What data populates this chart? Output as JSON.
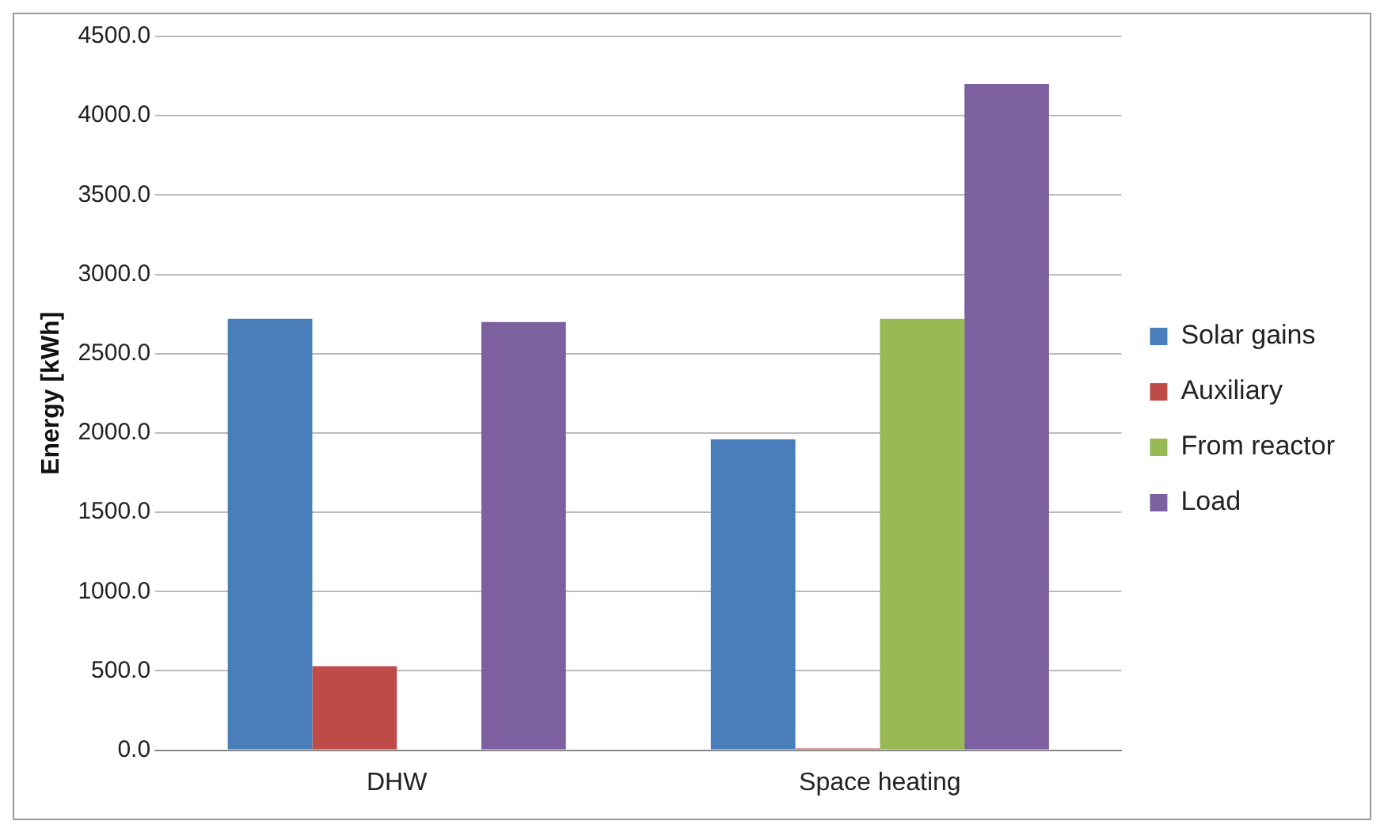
{
  "chart_data": {
    "type": "bar",
    "ylabel": "Energy [kWh]",
    "categories": [
      "DHW",
      "Space heating"
    ],
    "series": [
      {
        "name": "Solar gains",
        "color": "#4a7ebb",
        "values": [
          2720,
          1960
        ]
      },
      {
        "name": "Auxiliary",
        "color": "#be4b48",
        "values": [
          530,
          10
        ]
      },
      {
        "name": "From reactor",
        "color": "#98b954",
        "values": [
          0,
          2720
        ]
      },
      {
        "name": "Load",
        "color": "#7d60a0",
        "values": [
          2700,
          4200
        ]
      }
    ],
    "ylim": [
      0,
      4500
    ],
    "yticks": [
      {
        "value": 0,
        "label": "0.0"
      },
      {
        "value": 500,
        "label": "500.0"
      },
      {
        "value": 1000,
        "label": "1000.0"
      },
      {
        "value": 1500,
        "label": "1500.0"
      },
      {
        "value": 2000,
        "label": "2000.0"
      },
      {
        "value": 2500,
        "label": "2500.0"
      },
      {
        "value": 3000,
        "label": "3000.0"
      },
      {
        "value": 3500,
        "label": "3500.0"
      },
      {
        "value": 4000,
        "label": "4000.0"
      },
      {
        "value": 4500,
        "label": "4500.0"
      }
    ],
    "grid": "y",
    "legend": "right"
  }
}
